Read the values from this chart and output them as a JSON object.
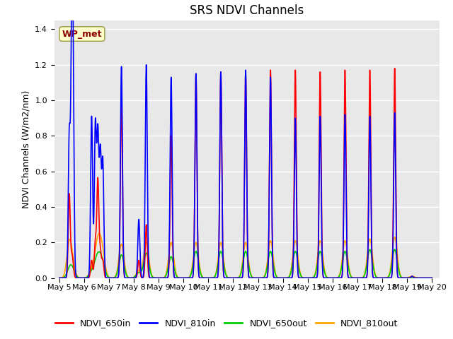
{
  "title": "SRS NDVI Channels",
  "ylabel": "NDVI Channels (W/m2/nm)",
  "xlabel": "",
  "annotation_text": "WP_met",
  "annotation_color": "#8B0000",
  "annotation_bg": "#FFFFCC",
  "ylim": [
    0.0,
    1.45
  ],
  "yticks": [
    0.0,
    0.2,
    0.4,
    0.6,
    0.8,
    1.0,
    1.2,
    1.4
  ],
  "xtick_labels": [
    "May 5",
    "May 6",
    "May 7",
    "May 8",
    "May 9",
    "May 10",
    "May 11",
    "May 12",
    "May 13",
    "May 14",
    "May 15",
    "May 16",
    "May 17",
    "May 18",
    "May 19",
    "May 20"
  ],
  "series": {
    "NDVI_650in": {
      "color": "#FF0000",
      "lw": 1.2
    },
    "NDVI_810in": {
      "color": "#0000FF",
      "lw": 1.2
    },
    "NDVI_650out": {
      "color": "#00CC00",
      "lw": 1.2
    },
    "NDVI_810out": {
      "color": "#FFA500",
      "lw": 1.2
    }
  },
  "bg_color": "#E8E8E8",
  "grid_color": "#FFFFFF",
  "title_fontsize": 12,
  "label_fontsize": 9,
  "tick_fontsize": 8
}
